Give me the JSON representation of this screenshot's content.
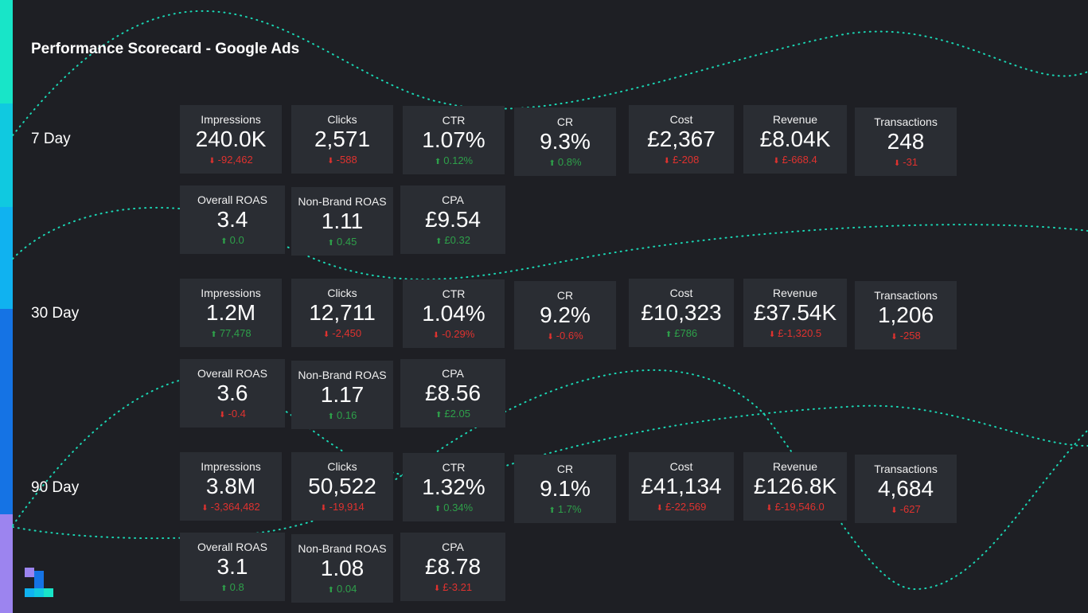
{
  "title": "Performance Scorecard - Google Ads",
  "colors": {
    "background": "#1e1f24",
    "card": "#2a2d33",
    "positive": "#2ea04a",
    "negative": "#e0322f",
    "line": "#1ad6b4"
  },
  "sections": [
    {
      "label": "7 Day",
      "row1": [
        {
          "label": "Impressions",
          "value": "240.0K",
          "change": "-92,462",
          "dir": "down"
        },
        {
          "label": "Clicks",
          "value": "2,571",
          "change": "-588",
          "dir": "down"
        },
        {
          "label": "CTR",
          "value": "1.07%",
          "change": "0.12%",
          "dir": "up"
        },
        {
          "label": "CR",
          "value": "9.3%",
          "change": "0.8%",
          "dir": "up"
        },
        {
          "label": "Cost",
          "value": "£2,367",
          "change": "£-208",
          "dir": "down"
        },
        {
          "label": "Revenue",
          "value": "£8.04K",
          "change": "£-668.4",
          "dir": "down"
        },
        {
          "label": "Transactions",
          "value": "248",
          "change": "-31",
          "dir": "down"
        }
      ],
      "row2": [
        {
          "label": "Overall ROAS",
          "value": "3.4",
          "change": "0.0",
          "dir": "up"
        },
        {
          "label": "Non-Brand ROAS",
          "value": "1.11",
          "change": "0.45",
          "dir": "up"
        },
        {
          "label": "CPA",
          "value": "£9.54",
          "change": "£0.32",
          "dir": "up"
        }
      ]
    },
    {
      "label": "30 Day",
      "row1": [
        {
          "label": "Impressions",
          "value": "1.2M",
          "change": "77,478",
          "dir": "up"
        },
        {
          "label": "Clicks",
          "value": "12,711",
          "change": "-2,450",
          "dir": "down"
        },
        {
          "label": "CTR",
          "value": "1.04%",
          "change": "-0.29%",
          "dir": "down"
        },
        {
          "label": "CR",
          "value": "9.2%",
          "change": "-0.6%",
          "dir": "down"
        },
        {
          "label": "Cost",
          "value": "£10,323",
          "change": "£786",
          "dir": "up"
        },
        {
          "label": "Revenue",
          "value": "£37.54K",
          "change": "£-1,320.5",
          "dir": "down"
        },
        {
          "label": "Transactions",
          "value": "1,206",
          "change": "-258",
          "dir": "down"
        }
      ],
      "row2": [
        {
          "label": "Overall ROAS",
          "value": "3.6",
          "change": "-0.4",
          "dir": "down"
        },
        {
          "label": "Non-Brand ROAS",
          "value": "1.17",
          "change": "0.16",
          "dir": "up"
        },
        {
          "label": "CPA",
          "value": "£8.56",
          "change": "£2.05",
          "dir": "up"
        }
      ]
    },
    {
      "label": "90 Day",
      "row1": [
        {
          "label": "Impressions",
          "value": "3.8M",
          "change": "-3,364,482",
          "dir": "down"
        },
        {
          "label": "Clicks",
          "value": "50,522",
          "change": "-19,914",
          "dir": "down"
        },
        {
          "label": "CTR",
          "value": "1.32%",
          "change": "0.34%",
          "dir": "up"
        },
        {
          "label": "CR",
          "value": "9.1%",
          "change": "1.7%",
          "dir": "up"
        },
        {
          "label": "Cost",
          "value": "£41,134",
          "change": "£-22,569",
          "dir": "down"
        },
        {
          "label": "Revenue",
          "value": "£126.8K",
          "change": "£-19,546.0",
          "dir": "down"
        },
        {
          "label": "Transactions",
          "value": "4,684",
          "change": "-627",
          "dir": "down"
        }
      ],
      "row2": [
        {
          "label": "Overall ROAS",
          "value": "3.1",
          "change": "0.8",
          "dir": "up"
        },
        {
          "label": "Non-Brand ROAS",
          "value": "1.08",
          "change": "0.04",
          "dir": "up"
        },
        {
          "label": "CPA",
          "value": "£8.78",
          "change": "£-3.21",
          "dir": "down"
        }
      ]
    }
  ]
}
